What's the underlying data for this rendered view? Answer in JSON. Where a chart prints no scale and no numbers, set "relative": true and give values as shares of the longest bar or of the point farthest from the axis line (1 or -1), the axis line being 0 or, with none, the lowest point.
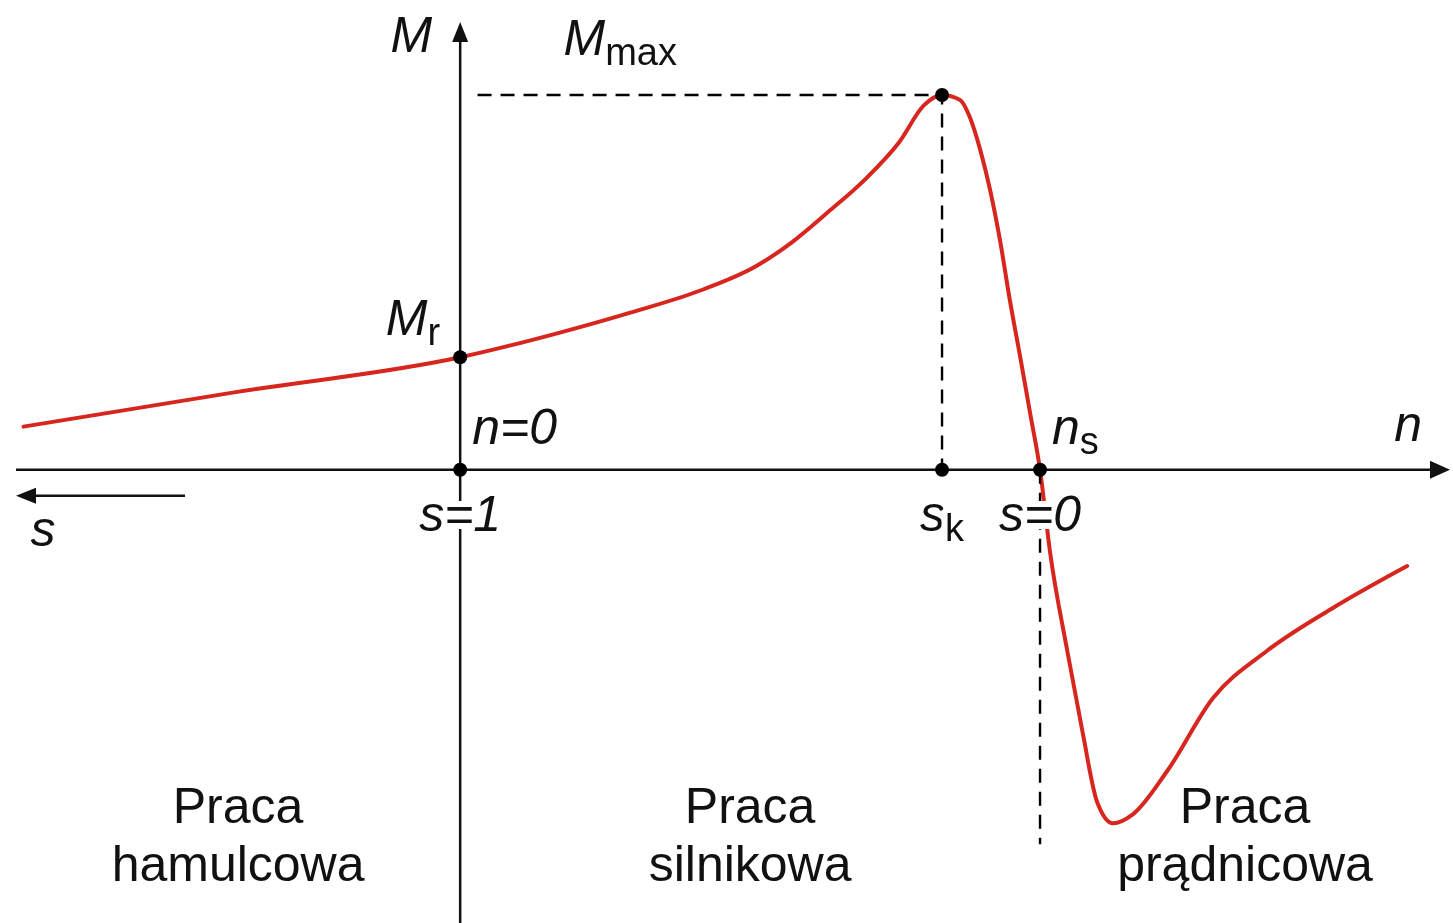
{
  "chart_data": {
    "type": "line",
    "relative": true,
    "xlabel": "s",
    "ylabel": "M",
    "xlim": [
      1.766,
      -0.707
    ],
    "xticks": [
      {
        "value": 1,
        "label": "s=1"
      },
      {
        "value": 0.169,
        "label": "s$_{k}$"
      },
      {
        "value": 0,
        "label": "s=0"
      }
    ],
    "series": [
      {
        "color": "#d7261e",
        "x": [
          1.753,
          1.379,
          1,
          0.828,
          0.705,
          0.581,
          0.49,
          0.428,
          0.366,
          0.303,
          0.243,
          0.2,
          0.169,
          0.138,
          0.121,
          0.103,
          0.086,
          0.069,
          0.052,
          0.034,
          0.017,
          0,
          -0.017,
          -0.047,
          -0.074,
          -0.098,
          -0.126,
          -0.16,
          -0.219,
          -0.298,
          -0.391,
          -0.505,
          -0.633
        ],
        "values": [
          0.115,
          0.209,
          0.3,
          0.366,
          0.42,
          0.481,
          0.543,
          0.607,
          0.687,
          0.773,
          0.874,
          0.973,
          1,
          0.987,
          0.941,
          0.853,
          0.746,
          0.612,
          0.452,
          0.299,
          0.15,
          0,
          -0.217,
          -0.484,
          -0.706,
          -0.885,
          -0.944,
          -0.92,
          -0.805,
          -0.61,
          -0.484,
          -0.369,
          -0.257
        ]
      },
      {
        "color": "#000000",
        "line_style": "dashed",
        "x": [
          0.97,
          0.169,
          0.169
        ],
        "values": [
          1,
          1,
          0
        ]
      },
      {
        "color": "#000000",
        "line_style": "dashed",
        "x": [
          0,
          0
        ],
        "values": [
          0,
          -1
        ]
      },
      {
        "type": "scatter",
        "color": "#000000",
        "marker": "circle",
        "x": [
          1,
          1,
          0.169,
          0.169,
          0
        ],
        "values": [
          0,
          0.3,
          1,
          0,
          0
        ]
      }
    ],
    "annotations": [
      {
        "text": "M$_{max}$",
        "x": 0.724,
        "y": 1
      },
      {
        "text": "M$_{r}$",
        "x": 1,
        "y": 0.3
      },
      {
        "text": "n=0",
        "x": 1,
        "y": 0
      },
      {
        "text": "n$_{s}$",
        "x": 0,
        "y": 0
      },
      "n",
      "Praca hamulcowa",
      "Praca silnikowa",
      "Praca prądnicowa"
    ]
  }
}
